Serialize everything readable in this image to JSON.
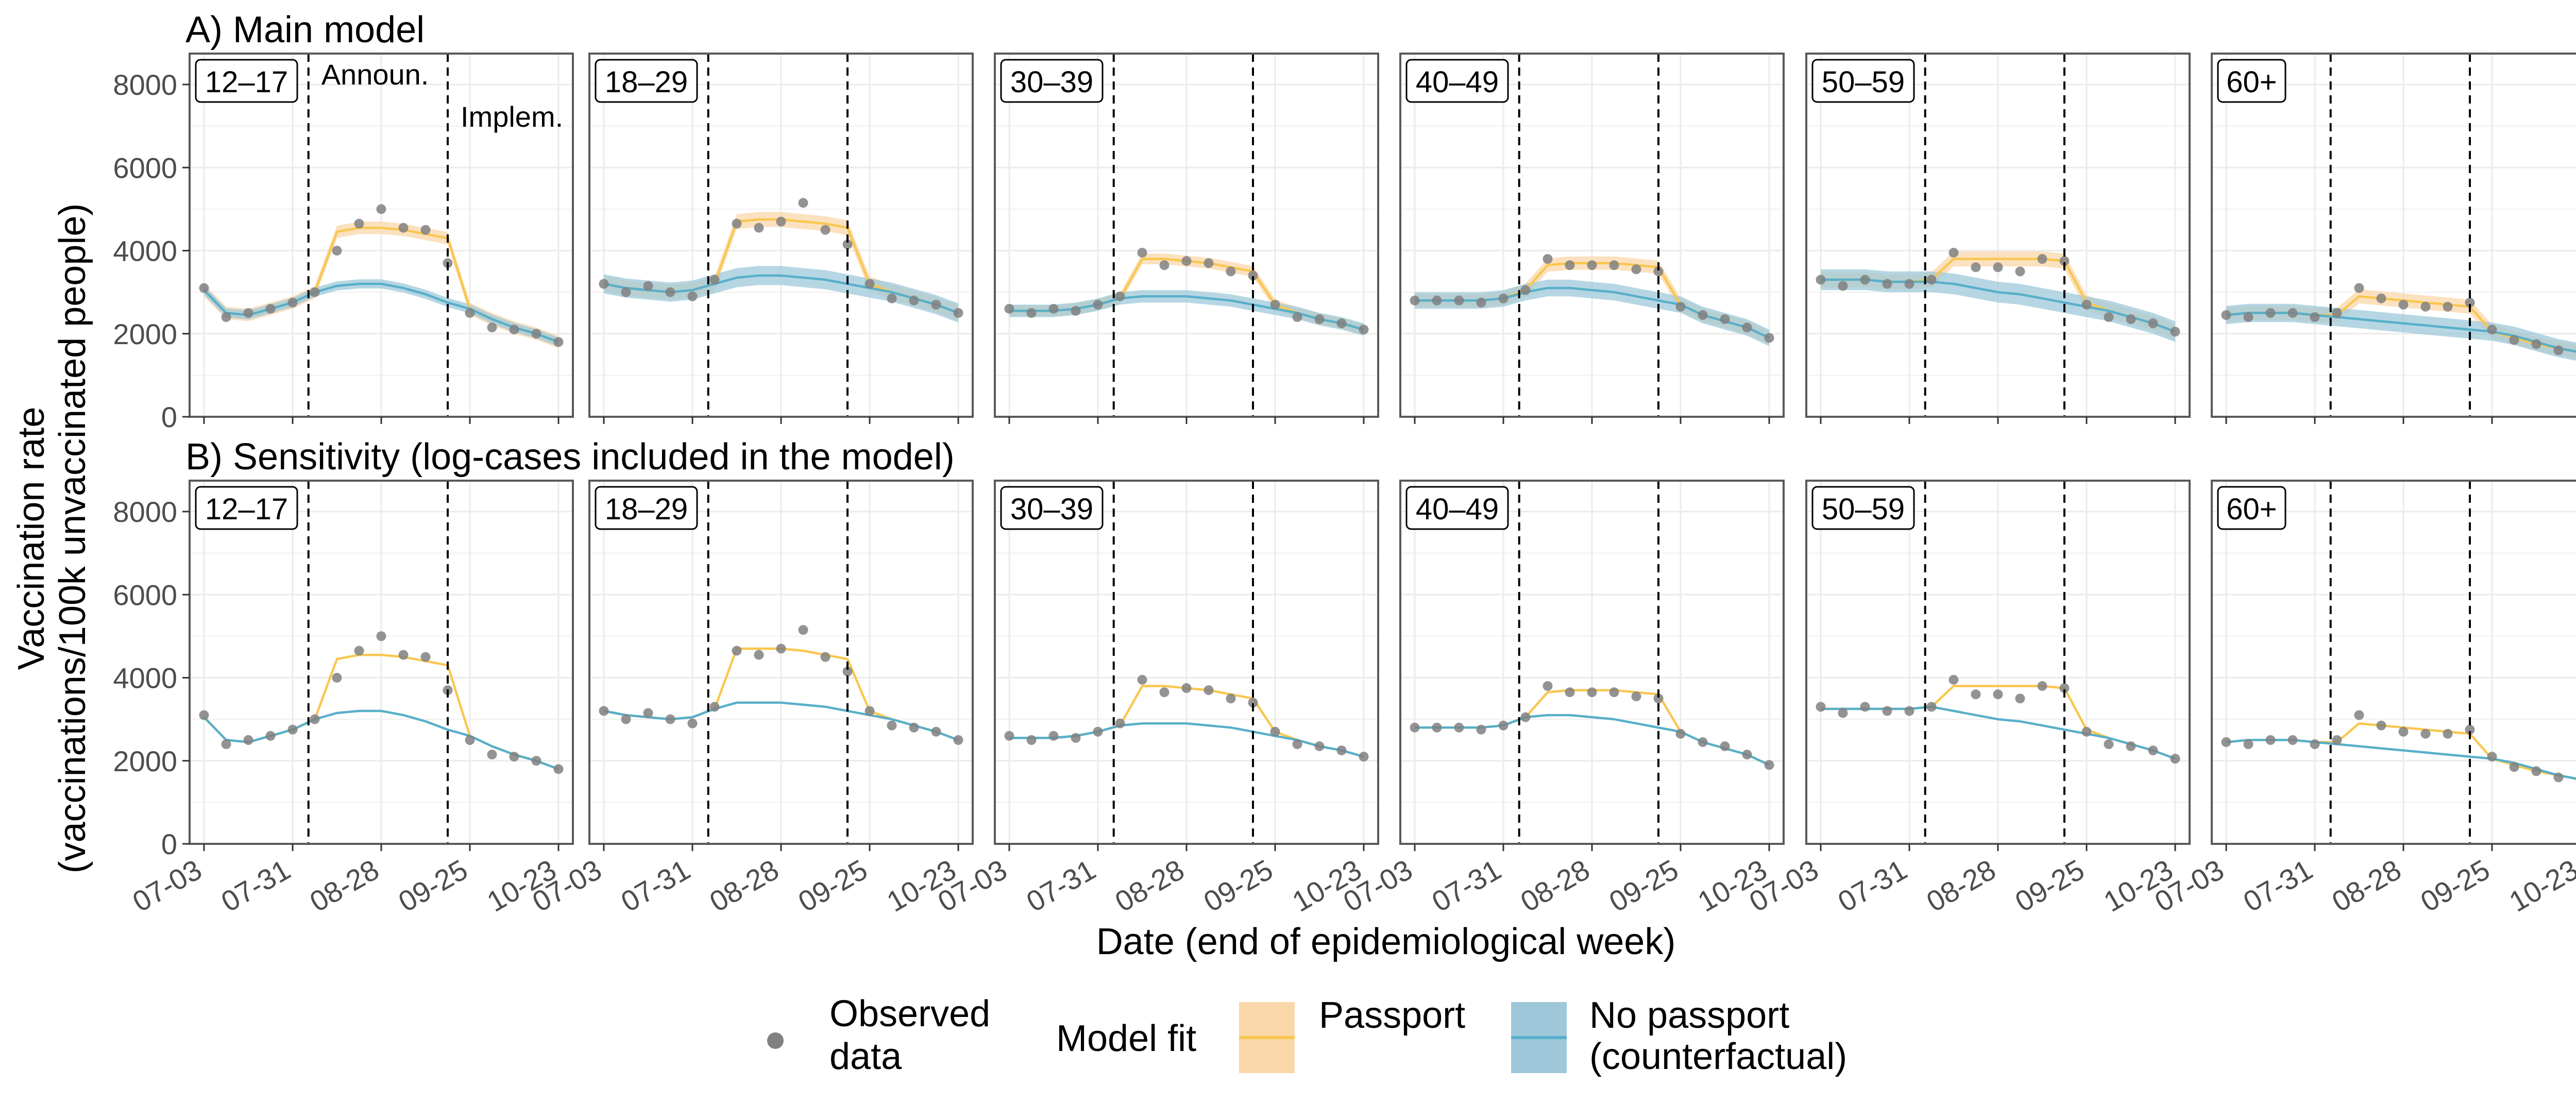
{
  "figure": {
    "ylabel_line1": "Vaccination rate",
    "ylabel_line2": "(vaccinations/100k unvaccinated people)",
    "xlabel": "Date (end of epidemiological week)",
    "announce_label": "Announ.",
    "implement_label": "Implem.",
    "legend": {
      "observed_line1": "Observed",
      "observed_line2": "data",
      "model_fit": "Model fit",
      "passport": "Passport",
      "no_passport_line1": "No passport",
      "no_passport_line2": "(counterfactual)"
    },
    "colors": {
      "passport_line": "#F9C74F",
      "passport_band": "#FAD7A9",
      "nopassport_line": "#58AFC9",
      "nopassport_band": "#9EC8DA",
      "overlap_band": "#8FAF9C",
      "observed_point": "#808080",
      "grid": "#EBEBEB",
      "panel_border": "#595959"
    }
  },
  "chart_data": {
    "type": "line",
    "x_ticks": [
      "07-03",
      "07-31",
      "08-28",
      "09-25",
      "10-23"
    ],
    "x_dates": [
      "07-03",
      "07-10",
      "07-17",
      "07-24",
      "07-31",
      "08-07",
      "08-14",
      "08-21",
      "08-28",
      "09-04",
      "09-11",
      "09-18",
      "09-25",
      "10-02",
      "10-09",
      "10-16",
      "10-23"
    ],
    "announcement_date": "08-05",
    "implementation_date": "09-18",
    "ylim": [
      0,
      8000
    ],
    "y_ticks": [
      0,
      2000,
      4000,
      6000,
      8000
    ],
    "age_groups": [
      "12–17",
      "18–29",
      "30–39",
      "40–49",
      "50–59",
      "60+"
    ],
    "rows": [
      {
        "label": "A) Main model",
        "bands": true,
        "panels": [
          {
            "group": "12–17",
            "observed": [
              3100,
              2400,
              2500,
              2600,
              2750,
              3000,
              4000,
              4650,
              5000,
              4550,
              4500,
              3700,
              2500,
              2150,
              2100,
              2000,
              1800
            ],
            "passport": [
              3050,
              2500,
              2450,
              2600,
              2750,
              3000,
              4450,
              4550,
              4550,
              4500,
              4400,
              4300,
              2600,
              2350,
              2150,
              2000,
              1800
            ],
            "no_passport": [
              3050,
              2500,
              2450,
              2600,
              2750,
              3000,
              3150,
              3200,
              3200,
              3100,
              2950,
              2750,
              2600,
              2350,
              2150,
              2000,
              1800
            ],
            "passport_halfwidth": 150,
            "no_passport_halfwidth": 110
          },
          {
            "group": "18–29",
            "observed": [
              3200,
              3000,
              3150,
              3000,
              2900,
              3300,
              4650,
              4550,
              4700,
              5150,
              4500,
              4150,
              3200,
              2850,
              2800,
              2700,
              2500
            ],
            "passport": [
              3200,
              3100,
              3050,
              3000,
              3050,
              3200,
              4700,
              4750,
              4750,
              4700,
              4650,
              4550,
              3200,
              3000,
              2850,
              2700,
              2500
            ],
            "no_passport": [
              3200,
              3100,
              3050,
              3000,
              3050,
              3200,
              3350,
              3400,
              3400,
              3350,
              3300,
              3200,
              3100,
              3000,
              2850,
              2700,
              2500
            ],
            "passport_halfwidth": 180,
            "no_passport_halfwidth": 230
          },
          {
            "group": "30–39",
            "observed": [
              2600,
              2500,
              2600,
              2550,
              2700,
              2900,
              3950,
              3650,
              3750,
              3700,
              3500,
              3400,
              2700,
              2400,
              2350,
              2250,
              2100
            ],
            "passport": [
              2550,
              2550,
              2550,
              2600,
              2700,
              2850,
              3800,
              3800,
              3750,
              3700,
              3600,
              3500,
              2700,
              2500,
              2350,
              2250,
              2100
            ],
            "no_passport": [
              2550,
              2550,
              2550,
              2600,
              2700,
              2850,
              2900,
              2900,
              2900,
              2850,
              2800,
              2700,
              2600,
              2500,
              2350,
              2250,
              2100
            ],
            "passport_halfwidth": 130,
            "no_passport_halfwidth": 150
          },
          {
            "group": "40–49",
            "observed": [
              2800,
              2800,
              2800,
              2750,
              2850,
              3050,
              3800,
              3650,
              3650,
              3650,
              3550,
              3500,
              2650,
              2450,
              2350,
              2150,
              1900
            ],
            "passport": [
              2800,
              2800,
              2800,
              2800,
              2850,
              3050,
              3650,
              3700,
              3700,
              3700,
              3650,
              3600,
              2700,
              2450,
              2300,
              2150,
              1900
            ],
            "no_passport": [
              2800,
              2800,
              2800,
              2800,
              2850,
              3000,
              3100,
              3100,
              3050,
              3000,
              2900,
              2800,
              2700,
              2450,
              2300,
              2150,
              1900
            ],
            "passport_halfwidth": 160,
            "no_passport_halfwidth": 200
          },
          {
            "group": "50–59",
            "observed": [
              3300,
              3150,
              3300,
              3200,
              3200,
              3300,
              3950,
              3600,
              3600,
              3500,
              3800,
              3750,
              2700,
              2400,
              2350,
              2250,
              2050
            ],
            "passport": [
              3300,
              3300,
              3300,
              3250,
              3250,
              3300,
              3800,
              3800,
              3800,
              3800,
              3800,
              3750,
              2750,
              2550,
              2400,
              2250,
              2050
            ],
            "no_passport": [
              3300,
              3300,
              3300,
              3250,
              3250,
              3250,
              3200,
              3100,
              3000,
              2950,
              2850,
              2750,
              2650,
              2550,
              2400,
              2250,
              2050
            ],
            "passport_halfwidth": 180,
            "no_passport_halfwidth": 250
          },
          {
            "group": "60+",
            "observed": [
              2450,
              2400,
              2500,
              2500,
              2400,
              2500,
              3100,
              2850,
              2700,
              2650,
              2650,
              2750,
              2100,
              1850,
              1750,
              1600,
              1550
            ],
            "passport": [
              2450,
              2500,
              2500,
              2500,
              2450,
              2450,
              2900,
              2850,
              2800,
              2750,
              2700,
              2650,
              2050,
              1900,
              1750,
              1650,
              1550
            ],
            "no_passport": [
              2450,
              2500,
              2500,
              2500,
              2450,
              2400,
              2350,
              2300,
              2250,
              2200,
              2150,
              2100,
              2050,
              1950,
              1800,
              1650,
              1550
            ],
            "passport_halfwidth": 170,
            "no_passport_halfwidth": 220
          }
        ]
      },
      {
        "label": "B) Sensitivity (log-cases included in the model)",
        "bands": false,
        "panels": [
          {
            "group": "12–17",
            "observed": [
              3100,
              2400,
              2500,
              2600,
              2750,
              3000,
              4000,
              4650,
              5000,
              4550,
              4500,
              3700,
              2500,
              2150,
              2100,
              2000,
              1800
            ],
            "passport": [
              3050,
              2500,
              2450,
              2600,
              2750,
              3000,
              4450,
              4550,
              4550,
              4500,
              4400,
              4300,
              2600,
              2350,
              2150,
              2000,
              1800
            ],
            "no_passport": [
              3050,
              2500,
              2450,
              2600,
              2750,
              3000,
              3150,
              3200,
              3200,
              3100,
              2950,
              2750,
              2600,
              2350,
              2150,
              2000,
              1800
            ]
          },
          {
            "group": "18–29",
            "observed": [
              3200,
              3000,
              3150,
              3000,
              2900,
              3300,
              4650,
              4550,
              4700,
              5150,
              4500,
              4150,
              3200,
              2850,
              2800,
              2700,
              2500
            ],
            "passport": [
              3200,
              3100,
              3050,
              3000,
              3050,
              3250,
              4700,
              4700,
              4700,
              4650,
              4550,
              4450,
              3200,
              3000,
              2850,
              2700,
              2500
            ],
            "no_passport": [
              3200,
              3100,
              3050,
              3000,
              3050,
              3250,
              3400,
              3400,
              3400,
              3350,
              3300,
              3200,
              3100,
              3000,
              2850,
              2700,
              2500
            ]
          },
          {
            "group": "30–39",
            "observed": [
              2600,
              2500,
              2600,
              2550,
              2700,
              2900,
              3950,
              3650,
              3750,
              3700,
              3500,
              3400,
              2700,
              2400,
              2350,
              2250,
              2100
            ],
            "passport": [
              2550,
              2550,
              2550,
              2600,
              2700,
              2850,
              3800,
              3800,
              3750,
              3700,
              3600,
              3500,
              2700,
              2500,
              2350,
              2250,
              2100
            ],
            "no_passport": [
              2550,
              2550,
              2550,
              2600,
              2700,
              2850,
              2900,
              2900,
              2900,
              2850,
              2800,
              2700,
              2600,
              2500,
              2350,
              2250,
              2100
            ]
          },
          {
            "group": "40–49",
            "observed": [
              2800,
              2800,
              2800,
              2750,
              2850,
              3050,
              3800,
              3650,
              3650,
              3650,
              3550,
              3500,
              2650,
              2450,
              2350,
              2150,
              1900
            ],
            "passport": [
              2800,
              2800,
              2800,
              2800,
              2850,
              3050,
              3650,
              3700,
              3700,
              3700,
              3650,
              3600,
              2700,
              2450,
              2300,
              2150,
              1900
            ],
            "no_passport": [
              2800,
              2800,
              2800,
              2800,
              2850,
              3050,
              3100,
              3100,
              3050,
              3000,
              2900,
              2800,
              2700,
              2450,
              2300,
              2150,
              1900
            ]
          },
          {
            "group": "50–59",
            "observed": [
              3300,
              3150,
              3300,
              3200,
              3200,
              3300,
              3950,
              3600,
              3600,
              3500,
              3800,
              3750,
              2700,
              2400,
              2350,
              2250,
              2050
            ],
            "passport": [
              3250,
              3250,
              3250,
              3250,
              3250,
              3300,
              3800,
              3800,
              3800,
              3800,
              3800,
              3750,
              2750,
              2550,
              2400,
              2250,
              2050
            ],
            "no_passport": [
              3250,
              3250,
              3250,
              3250,
              3250,
              3300,
              3200,
              3100,
              3000,
              2950,
              2850,
              2750,
              2650,
              2550,
              2400,
              2250,
              2050
            ]
          },
          {
            "group": "60+",
            "observed": [
              2450,
              2400,
              2500,
              2500,
              2400,
              2500,
              3100,
              2850,
              2700,
              2650,
              2650,
              2750,
              2100,
              1850,
              1750,
              1600,
              1550
            ],
            "passport": [
              2450,
              2500,
              2500,
              2500,
              2450,
              2450,
              2900,
              2850,
              2800,
              2750,
              2700,
              2650,
              2050,
              1900,
              1750,
              1650,
              1550
            ],
            "no_passport": [
              2450,
              2500,
              2500,
              2500,
              2450,
              2400,
              2350,
              2300,
              2250,
              2200,
              2150,
              2100,
              2050,
              1950,
              1800,
              1650,
              1550
            ]
          }
        ]
      }
    ]
  }
}
